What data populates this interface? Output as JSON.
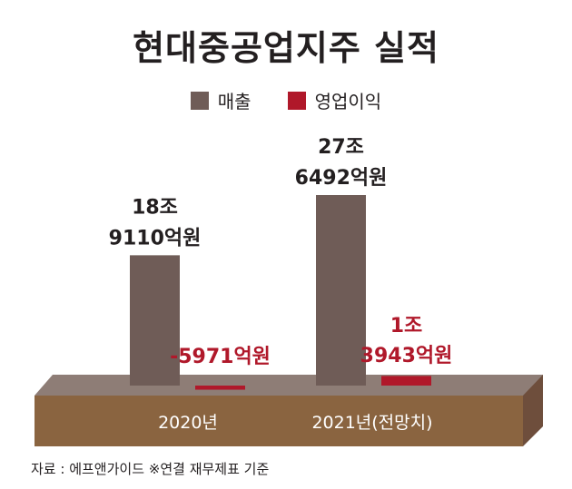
{
  "colors": {
    "revenue": "#6f5c57",
    "operating_profit": "#b0182a",
    "base_front": "#8a6440",
    "base_top": "#8e7d76",
    "base_side": "#6e4e3c",
    "label_dark": "#231f20"
  },
  "source": "자료 : 에프앤가이드 ※연결 재무제표 기준",
  "chart_data": {
    "type": "bar",
    "title": "현대중공업지주 실적",
    "categories": [
      "2020년",
      "2021년(전망치)"
    ],
    "unit": "억원",
    "series": [
      {
        "name": "매출",
        "values": [
          189110,
          276492
        ],
        "labels": [
          [
            "18조",
            "9110억원"
          ],
          [
            "27조",
            "6492억원"
          ]
        ]
      },
      {
        "name": "영업이익",
        "values": [
          -5971,
          13943
        ],
        "labels": [
          [
            "-5971억원"
          ],
          [
            "1조",
            "3943억원"
          ]
        ]
      }
    ],
    "legend_position": "top-center",
    "grid": false
  }
}
